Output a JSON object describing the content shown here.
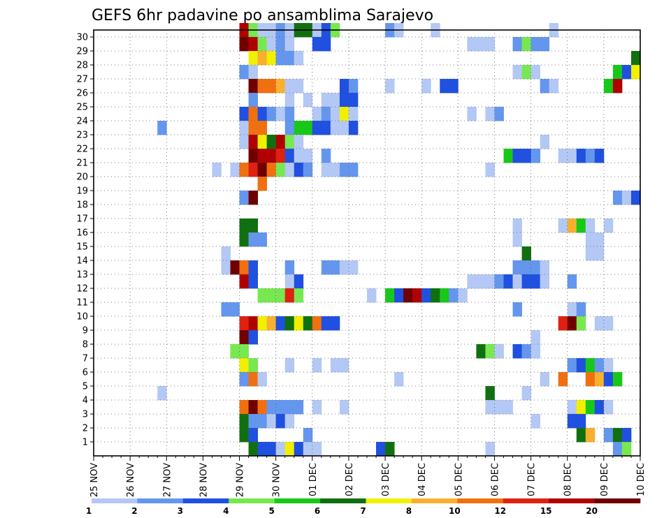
{
  "chart_data": {
    "type": "heatmap",
    "title": "GEFS 6hr padavine po ansamblima Sarajevo",
    "x_labels": [
      "25 NOV",
      "26 NOV",
      "27 NOV",
      "28 NOV",
      "29 NOV",
      "30 NOV",
      "01 DEC",
      "02 DEC",
      "03 DEC",
      "04 DEC",
      "05 DEC",
      "06 DEC",
      "07 DEC",
      "08 DEC",
      "09 DEC",
      "10 DEC"
    ],
    "y_labels": [
      "1",
      "2",
      "3",
      "4",
      "5",
      "6",
      "7",
      "8",
      "9",
      "10",
      "11",
      "12",
      "13",
      "14",
      "15",
      "16",
      "17",
      "18",
      "19",
      "20",
      "21",
      "22",
      "23",
      "24",
      "25",
      "26",
      "27",
      "28",
      "29",
      "30"
    ],
    "x_range": [
      "25 NOV",
      "10 DEC"
    ],
    "y_range": [
      0,
      30
    ],
    "x_unit": "6-hour step (4 per day)",
    "grid": true,
    "colorbar": {
      "boundaries": [
        "1",
        "2",
        "3",
        "4",
        "5",
        "6",
        "7",
        "8",
        "10",
        "12",
        "15",
        "20"
      ],
      "colors": [
        "#b4c8f5",
        "#6496ee",
        "#2050e0",
        "#78e850",
        "#18c818",
        "#107010",
        "#f0f000",
        "#f8b030",
        "#f07010",
        "#e02010",
        "#b00000",
        "#700000"
      ]
    },
    "cells": [
      [
        30,
        16,
        11
      ],
      [
        30,
        17,
        4
      ],
      [
        30,
        18,
        1
      ],
      [
        30,
        19,
        1
      ],
      [
        30,
        20,
        2
      ],
      [
        30,
        21,
        1
      ],
      [
        30,
        22,
        6
      ],
      [
        30,
        23,
        6
      ],
      [
        30,
        24,
        1
      ],
      [
        30,
        25,
        3
      ],
      [
        30,
        26,
        4
      ],
      [
        30,
        32,
        2
      ],
      [
        30,
        33,
        1
      ],
      [
        30,
        37,
        1
      ],
      [
        30,
        50,
        1
      ],
      [
        29,
        16,
        12
      ],
      [
        29,
        17,
        11
      ],
      [
        29,
        18,
        4
      ],
      [
        29,
        19,
        1
      ],
      [
        29,
        20,
        2
      ],
      [
        29,
        21,
        1
      ],
      [
        29,
        24,
        3
      ],
      [
        29,
        25,
        3
      ],
      [
        29,
        41,
        1
      ],
      [
        29,
        42,
        1
      ],
      [
        29,
        43,
        1
      ],
      [
        29,
        46,
        2
      ],
      [
        29,
        47,
        4
      ],
      [
        29,
        48,
        2
      ],
      [
        29,
        49,
        2
      ],
      [
        28,
        17,
        7
      ],
      [
        28,
        18,
        8
      ],
      [
        28,
        19,
        7
      ],
      [
        28,
        20,
        2
      ],
      [
        28,
        21,
        2
      ],
      [
        28,
        22,
        1
      ],
      [
        28,
        59,
        6
      ],
      [
        27,
        16,
        2
      ],
      [
        27,
        17,
        1
      ],
      [
        27,
        46,
        1
      ],
      [
        27,
        47,
        4
      ],
      [
        27,
        48,
        1
      ],
      [
        27,
        57,
        5
      ],
      [
        27,
        58,
        3
      ],
      [
        27,
        59,
        7
      ],
      [
        26,
        17,
        12
      ],
      [
        26,
        18,
        9
      ],
      [
        26,
        19,
        9
      ],
      [
        26,
        20,
        8
      ],
      [
        26,
        21,
        1
      ],
      [
        26,
        22,
        1
      ],
      [
        26,
        27,
        3
      ],
      [
        26,
        28,
        2
      ],
      [
        26,
        32,
        1
      ],
      [
        26,
        36,
        1
      ],
      [
        26,
        38,
        3
      ],
      [
        26,
        39,
        3
      ],
      [
        26,
        49,
        2
      ],
      [
        26,
        50,
        1
      ],
      [
        26,
        56,
        5
      ],
      [
        26,
        57,
        11
      ],
      [
        25,
        17,
        2
      ],
      [
        25,
        21,
        1
      ],
      [
        25,
        23,
        1
      ],
      [
        25,
        25,
        1
      ],
      [
        25,
        26,
        1
      ],
      [
        25,
        27,
        3
      ],
      [
        25,
        28,
        3
      ],
      [
        24,
        16,
        3
      ],
      [
        24,
        17,
        9
      ],
      [
        24,
        18,
        3
      ],
      [
        24,
        19,
        2
      ],
      [
        24,
        20,
        1
      ],
      [
        24,
        21,
        2
      ],
      [
        24,
        24,
        1
      ],
      [
        24,
        25,
        2
      ],
      [
        24,
        26,
        1
      ],
      [
        24,
        27,
        7
      ],
      [
        24,
        28,
        1
      ],
      [
        24,
        41,
        1
      ],
      [
        24,
        43,
        1
      ],
      [
        24,
        44,
        2
      ],
      [
        23,
        7,
        2
      ],
      [
        23,
        16,
        1
      ],
      [
        23,
        17,
        9
      ],
      [
        23,
        18,
        9
      ],
      [
        23,
        21,
        2
      ],
      [
        23,
        22,
        5
      ],
      [
        23,
        23,
        5
      ],
      [
        23,
        24,
        3
      ],
      [
        23,
        25,
        3
      ],
      [
        23,
        26,
        1
      ],
      [
        23,
        27,
        1
      ],
      [
        23,
        28,
        3
      ],
      [
        22,
        16,
        1
      ],
      [
        22,
        17,
        11
      ],
      [
        22,
        18,
        7
      ],
      [
        22,
        19,
        6
      ],
      [
        22,
        20,
        11
      ],
      [
        22,
        21,
        4
      ],
      [
        22,
        22,
        1
      ],
      [
        22,
        49,
        1
      ],
      [
        21,
        17,
        12
      ],
      [
        21,
        18,
        11
      ],
      [
        21,
        19,
        11
      ],
      [
        21,
        20,
        10
      ],
      [
        21,
        21,
        3
      ],
      [
        21,
        22,
        1
      ],
      [
        21,
        23,
        1
      ],
      [
        21,
        25,
        2
      ],
      [
        21,
        45,
        5
      ],
      [
        21,
        46,
        3
      ],
      [
        21,
        47,
        3
      ],
      [
        21,
        48,
        2
      ],
      [
        21,
        51,
        1
      ],
      [
        21,
        52,
        1
      ],
      [
        21,
        53,
        3
      ],
      [
        21,
        54,
        2
      ],
      [
        21,
        55,
        3
      ],
      [
        20,
        13,
        1
      ],
      [
        20,
        15,
        1
      ],
      [
        20,
        16,
        9
      ],
      [
        20,
        17,
        10
      ],
      [
        20,
        18,
        12
      ],
      [
        20,
        19,
        9
      ],
      [
        20,
        20,
        4
      ],
      [
        20,
        21,
        1
      ],
      [
        20,
        22,
        3
      ],
      [
        20,
        23,
        2
      ],
      [
        20,
        25,
        1
      ],
      [
        20,
        26,
        1
      ],
      [
        20,
        27,
        2
      ],
      [
        20,
        28,
        2
      ],
      [
        20,
        43,
        1
      ],
      [
        19,
        18,
        9
      ],
      [
        18,
        16,
        2
      ],
      [
        18,
        17,
        12
      ],
      [
        18,
        57,
        2
      ],
      [
        18,
        58,
        1
      ],
      [
        18,
        59,
        3
      ],
      [
        16,
        16,
        6
      ],
      [
        16,
        17,
        6
      ],
      [
        16,
        46,
        1
      ],
      [
        16,
        51,
        1
      ],
      [
        16,
        52,
        8
      ],
      [
        16,
        53,
        5
      ],
      [
        16,
        54,
        1
      ],
      [
        16,
        56,
        1
      ],
      [
        15,
        16,
        6
      ],
      [
        15,
        17,
        2
      ],
      [
        15,
        18,
        2
      ],
      [
        15,
        46,
        1
      ],
      [
        15,
        54,
        1
      ],
      [
        15,
        55,
        1
      ],
      [
        14,
        14,
        1
      ],
      [
        14,
        47,
        6
      ],
      [
        14,
        54,
        1
      ],
      [
        14,
        55,
        1
      ],
      [
        13,
        14,
        1
      ],
      [
        13,
        15,
        12
      ],
      [
        13,
        16,
        9
      ],
      [
        13,
        17,
        3
      ],
      [
        13,
        21,
        2
      ],
      [
        13,
        25,
        2
      ],
      [
        13,
        26,
        2
      ],
      [
        13,
        27,
        1
      ],
      [
        13,
        28,
        1
      ],
      [
        13,
        46,
        2
      ],
      [
        13,
        47,
        2
      ],
      [
        13,
        48,
        2
      ],
      [
        13,
        49,
        1
      ],
      [
        12,
        16,
        11
      ],
      [
        12,
        17,
        3
      ],
      [
        12,
        21,
        1
      ],
      [
        12,
        22,
        3
      ],
      [
        12,
        41,
        1
      ],
      [
        12,
        42,
        1
      ],
      [
        12,
        43,
        1
      ],
      [
        12,
        44,
        2
      ],
      [
        12,
        45,
        3
      ],
      [
        12,
        46,
        1
      ],
      [
        12,
        47,
        3
      ],
      [
        12,
        48,
        3
      ],
      [
        12,
        49,
        1
      ],
      [
        12,
        52,
        2
      ],
      [
        11,
        18,
        4
      ],
      [
        11,
        19,
        4
      ],
      [
        11,
        20,
        4
      ],
      [
        11,
        21,
        10
      ],
      [
        11,
        22,
        4
      ],
      [
        11,
        30,
        1
      ],
      [
        11,
        32,
        5
      ],
      [
        11,
        33,
        3
      ],
      [
        11,
        34,
        12
      ],
      [
        11,
        35,
        11
      ],
      [
        11,
        36,
        3
      ],
      [
        11,
        37,
        6
      ],
      [
        11,
        38,
        5
      ],
      [
        11,
        39,
        2
      ],
      [
        11,
        40,
        1
      ],
      [
        10,
        14,
        2
      ],
      [
        10,
        15,
        2
      ],
      [
        10,
        46,
        2
      ],
      [
        10,
        52,
        1
      ],
      [
        10,
        53,
        2
      ],
      [
        9,
        16,
        10
      ],
      [
        9,
        17,
        11
      ],
      [
        9,
        18,
        7
      ],
      [
        9,
        19,
        8
      ],
      [
        9,
        20,
        3
      ],
      [
        9,
        21,
        6
      ],
      [
        9,
        22,
        7
      ],
      [
        9,
        23,
        6
      ],
      [
        9,
        24,
        9
      ],
      [
        9,
        25,
        3
      ],
      [
        9,
        26,
        3
      ],
      [
        9,
        51,
        10
      ],
      [
        9,
        52,
        12
      ],
      [
        9,
        53,
        4
      ],
      [
        9,
        55,
        1
      ],
      [
        9,
        56,
        1
      ],
      [
        8,
        16,
        12
      ],
      [
        8,
        17,
        3
      ],
      [
        8,
        48,
        1
      ],
      [
        7,
        15,
        4
      ],
      [
        7,
        16,
        4
      ],
      [
        7,
        42,
        6
      ],
      [
        7,
        43,
        4
      ],
      [
        7,
        44,
        1
      ],
      [
        7,
        46,
        3
      ],
      [
        7,
        47,
        2
      ],
      [
        7,
        48,
        1
      ],
      [
        6,
        16,
        7
      ],
      [
        6,
        17,
        4
      ],
      [
        6,
        21,
        1
      ],
      [
        6,
        24,
        1
      ],
      [
        6,
        26,
        1
      ],
      [
        6,
        27,
        1
      ],
      [
        6,
        52,
        2
      ],
      [
        6,
        53,
        3
      ],
      [
        6,
        54,
        5
      ],
      [
        6,
        55,
        2
      ],
      [
        6,
        56,
        1
      ],
      [
        5,
        16,
        2
      ],
      [
        5,
        17,
        9
      ],
      [
        5,
        18,
        1
      ],
      [
        5,
        33,
        1
      ],
      [
        5,
        49,
        1
      ],
      [
        5,
        51,
        9
      ],
      [
        5,
        54,
        9
      ],
      [
        5,
        55,
        8
      ],
      [
        5,
        56,
        3
      ],
      [
        5,
        57,
        5
      ],
      [
        4,
        7,
        1
      ],
      [
        4,
        43,
        6
      ],
      [
        4,
        47,
        1
      ],
      [
        3,
        16,
        9
      ],
      [
        3,
        17,
        12
      ],
      [
        3,
        18,
        9
      ],
      [
        3,
        19,
        2
      ],
      [
        3,
        20,
        2
      ],
      [
        3,
        21,
        2
      ],
      [
        3,
        22,
        2
      ],
      [
        3,
        24,
        1
      ],
      [
        3,
        27,
        1
      ],
      [
        3,
        43,
        1
      ],
      [
        3,
        44,
        1
      ],
      [
        3,
        45,
        1
      ],
      [
        3,
        52,
        1
      ],
      [
        3,
        53,
        7
      ],
      [
        3,
        54,
        5
      ],
      [
        3,
        55,
        3
      ],
      [
        3,
        56,
        1
      ],
      [
        2,
        16,
        6
      ],
      [
        2,
        17,
        2
      ],
      [
        2,
        18,
        2
      ],
      [
        2,
        19,
        1
      ],
      [
        2,
        20,
        3
      ],
      [
        2,
        21,
        1
      ],
      [
        2,
        48,
        1
      ],
      [
        2,
        52,
        3
      ],
      [
        2,
        53,
        3
      ],
      [
        1,
        16,
        6
      ],
      [
        1,
        17,
        3
      ],
      [
        1,
        23,
        2
      ],
      [
        1,
        53,
        6
      ],
      [
        1,
        54,
        8
      ],
      [
        1,
        56,
        2
      ],
      [
        1,
        57,
        6
      ],
      [
        1,
        58,
        3
      ],
      [
        0,
        17,
        6
      ],
      [
        0,
        18,
        3
      ],
      [
        0,
        19,
        3
      ],
      [
        0,
        20,
        1
      ],
      [
        0,
        21,
        7
      ],
      [
        0,
        22,
        3
      ],
      [
        0,
        23,
        1
      ],
      [
        0,
        24,
        1
      ],
      [
        0,
        31,
        3
      ],
      [
        0,
        32,
        6
      ],
      [
        0,
        43,
        1
      ],
      [
        0,
        57,
        2
      ],
      [
        0,
        58,
        4
      ]
    ]
  }
}
